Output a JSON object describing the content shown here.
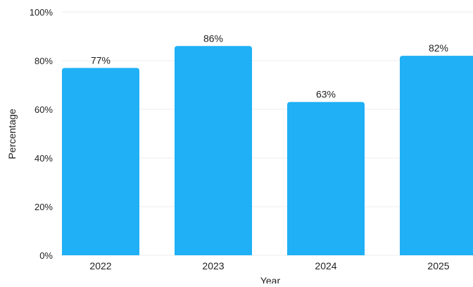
{
  "chart_data": {
    "type": "bar",
    "title": "",
    "xlabel": "Year",
    "ylabel": "Percentage",
    "categories": [
      "2022",
      "2023",
      "2024",
      "2025"
    ],
    "values": [
      77,
      86,
      63,
      82
    ],
    "value_labels": [
      "77%",
      "86%",
      "63%",
      "82%"
    ],
    "ylim": [
      0,
      100
    ],
    "yticks": [
      0,
      20,
      40,
      60,
      80,
      100
    ],
    "ytick_labels": [
      "0%",
      "20%",
      "40%",
      "60%",
      "80%",
      "100%"
    ],
    "grid": true,
    "bar_color": "#1fb0f5",
    "grid_color": "#eeeeee"
  }
}
